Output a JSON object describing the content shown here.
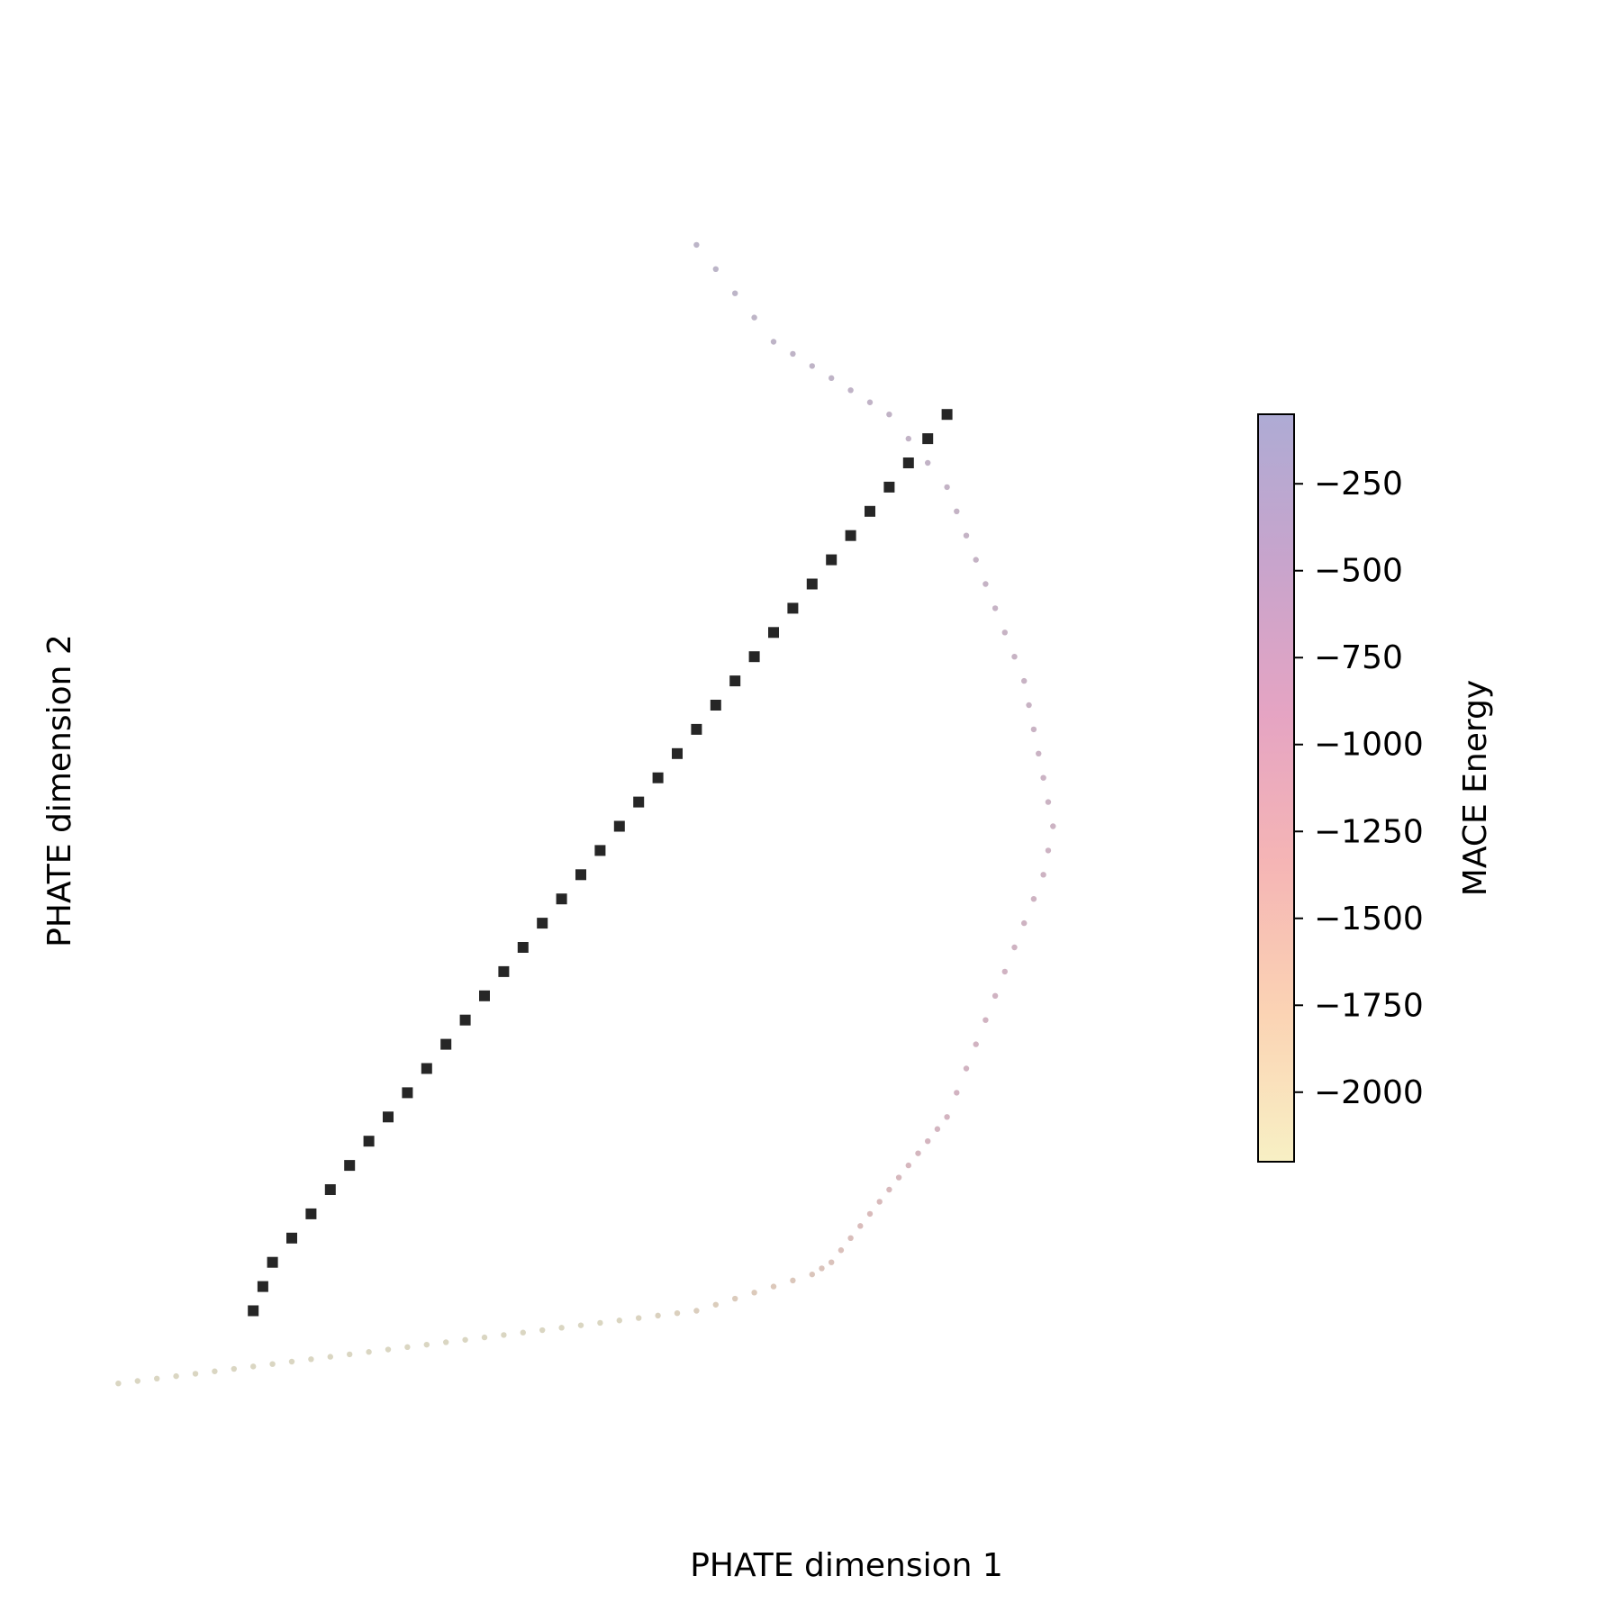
{
  "chart_data": {
    "type": "scatter",
    "xlabel": "PHATE dimension 1",
    "ylabel": "PHATE dimension 2",
    "xlim": [
      0,
      1
    ],
    "ylim": [
      0,
      1
    ],
    "axes_visible": false,
    "colorbar": {
      "label": "MACE Energy",
      "range": [
        -2200,
        -50
      ],
      "ticks": [
        -250,
        -500,
        -750,
        -1000,
        -1250,
        -1500,
        -1750,
        -2000
      ],
      "tick_labels": [
        "−250",
        "−500",
        "−750",
        "−1000",
        "−1250",
        "−1500",
        "−1750",
        "−2000"
      ],
      "colormap": [
        "#f8f0c4",
        "#fbd3b4",
        "#f5b5b5",
        "#e5a4c3",
        "#c8a4cc",
        "#aeabd4"
      ]
    },
    "series": [
      {
        "marker": "circle",
        "color_by": "MACE Energy",
        "points_x": [
          0.62,
          0.64,
          0.66,
          0.68,
          0.7,
          0.72,
          0.74,
          0.76,
          0.78,
          0.8,
          0.82,
          0.84,
          0.86,
          0.88,
          0.89,
          0.9,
          0.91,
          0.92,
          0.93,
          0.94,
          0.95,
          0.96,
          0.965,
          0.97,
          0.975,
          0.98,
          0.985,
          0.99,
          0.985,
          0.98,
          0.97,
          0.96,
          0.95,
          0.94,
          0.93,
          0.92,
          0.91,
          0.9,
          0.89,
          0.88,
          0.87,
          0.86,
          0.85,
          0.84,
          0.83,
          0.82,
          0.81,
          0.8,
          0.79,
          0.78,
          0.77,
          0.76,
          0.75,
          0.74,
          0.72,
          0.7,
          0.68,
          0.66,
          0.64,
          0.62,
          0.6,
          0.58,
          0.56,
          0.54,
          0.52,
          0.5,
          0.48,
          0.46,
          0.44,
          0.42,
          0.4,
          0.38,
          0.36,
          0.34,
          0.32,
          0.3,
          0.28,
          0.26,
          0.24,
          0.22,
          0.2,
          0.18,
          0.16,
          0.14,
          0.12,
          0.1,
          0.08,
          0.06,
          0.04,
          0.02
        ],
        "points_y": [
          0.98,
          0.96,
          0.94,
          0.92,
          0.9,
          0.89,
          0.88,
          0.87,
          0.86,
          0.85,
          0.84,
          0.82,
          0.8,
          0.78,
          0.76,
          0.74,
          0.72,
          0.7,
          0.68,
          0.66,
          0.64,
          0.62,
          0.6,
          0.58,
          0.56,
          0.54,
          0.52,
          0.5,
          0.48,
          0.46,
          0.44,
          0.42,
          0.4,
          0.38,
          0.36,
          0.34,
          0.32,
          0.3,
          0.28,
          0.26,
          0.25,
          0.24,
          0.23,
          0.22,
          0.21,
          0.2,
          0.19,
          0.18,
          0.17,
          0.16,
          0.15,
          0.14,
          0.135,
          0.13,
          0.125,
          0.12,
          0.115,
          0.11,
          0.105,
          0.1,
          0.098,
          0.096,
          0.094,
          0.092,
          0.09,
          0.088,
          0.086,
          0.084,
          0.082,
          0.08,
          0.078,
          0.076,
          0.074,
          0.072,
          0.07,
          0.068,
          0.066,
          0.064,
          0.062,
          0.06,
          0.058,
          0.056,
          0.054,
          0.052,
          0.05,
          0.048,
          0.046,
          0.044,
          0.042,
          0.04
        ],
        "energy": [
          -200,
          -220,
          -240,
          -260,
          -280,
          -300,
          -320,
          -340,
          -360,
          -380,
          -400,
          -420,
          -440,
          -460,
          -480,
          -500,
          -520,
          -540,
          -560,
          -580,
          -600,
          -620,
          -640,
          -660,
          -680,
          -700,
          -720,
          -740,
          -760,
          -780,
          -800,
          -820,
          -840,
          -860,
          -880,
          -900,
          -920,
          -940,
          -960,
          -980,
          -1000,
          -1050,
          -1100,
          -1150,
          -1200,
          -1250,
          -1300,
          -1350,
          -1400,
          -1450,
          -1500,
          -1550,
          -1600,
          -1650,
          -1700,
          -1750,
          -1800,
          -1850,
          -1900,
          -1950,
          -2000,
          -2050,
          -2100,
          -2150,
          -2180,
          -2190,
          -2200,
          -2200,
          -2200,
          -2200,
          -2200,
          -2200,
          -2200,
          -2200,
          -2200,
          -2200,
          -2200,
          -2200,
          -2200,
          -2200,
          -2200,
          -2200,
          -2200,
          -2200,
          -2200,
          -2200,
          -2200,
          -2200,
          -2200,
          -2200
        ]
      },
      {
        "marker": "square",
        "color": "#000000",
        "points_x": [
          0.16,
          0.17,
          0.18,
          0.2,
          0.22,
          0.24,
          0.26,
          0.28,
          0.3,
          0.32,
          0.34,
          0.36,
          0.38,
          0.4,
          0.42,
          0.44,
          0.46,
          0.48,
          0.5,
          0.52,
          0.54,
          0.56,
          0.58,
          0.6,
          0.62,
          0.64,
          0.66,
          0.68,
          0.7,
          0.72,
          0.74,
          0.76,
          0.78,
          0.8,
          0.82,
          0.84,
          0.86,
          0.88
        ],
        "points_y": [
          0.1,
          0.12,
          0.14,
          0.16,
          0.18,
          0.2,
          0.22,
          0.24,
          0.26,
          0.28,
          0.3,
          0.32,
          0.34,
          0.36,
          0.38,
          0.4,
          0.42,
          0.44,
          0.46,
          0.48,
          0.5,
          0.52,
          0.54,
          0.56,
          0.58,
          0.6,
          0.62,
          0.64,
          0.66,
          0.68,
          0.7,
          0.72,
          0.74,
          0.76,
          0.78,
          0.8,
          0.82,
          0.84
        ]
      }
    ]
  }
}
